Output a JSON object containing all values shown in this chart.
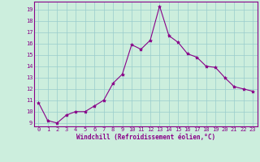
{
  "x": [
    0,
    1,
    2,
    3,
    4,
    5,
    6,
    7,
    8,
    9,
    10,
    11,
    12,
    13,
    14,
    15,
    16,
    17,
    18,
    19,
    20,
    21,
    22,
    23
  ],
  "y": [
    10.8,
    9.2,
    9.0,
    9.7,
    10.0,
    10.0,
    10.5,
    11.0,
    12.5,
    13.3,
    15.9,
    15.5,
    16.3,
    19.3,
    16.7,
    16.1,
    15.1,
    14.8,
    14.0,
    13.9,
    13.0,
    12.2,
    12.0,
    11.8
  ],
  "line_color": "#880088",
  "marker": "*",
  "marker_size": 3.0,
  "bg_color": "#cceedd",
  "grid_color": "#99cccc",
  "xlabel": "Windchill (Refroidissement éolien,°C)",
  "xlim": [
    -0.5,
    23.5
  ],
  "ylim": [
    8.7,
    19.7
  ],
  "yticks": [
    9,
    10,
    11,
    12,
    13,
    14,
    15,
    16,
    17,
    18,
    19
  ],
  "xticks": [
    0,
    1,
    2,
    3,
    4,
    5,
    6,
    7,
    8,
    9,
    10,
    11,
    12,
    13,
    14,
    15,
    16,
    17,
    18,
    19,
    20,
    21,
    22,
    23
  ],
  "tick_color": "#880088",
  "axis_label_color": "#880088",
  "spine_color": "#880088",
  "tick_fontsize": 5.0,
  "xlabel_fontsize": 5.5
}
